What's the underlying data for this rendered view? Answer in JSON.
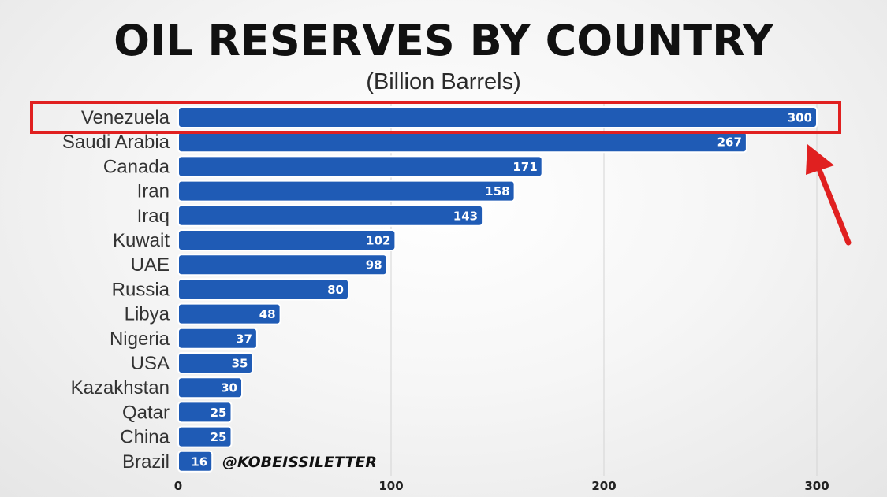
{
  "header": {
    "title": "OIL RESERVES BY COUNTRY",
    "subtitle": "(Billion Barrels)"
  },
  "watermark": "@KOBEISSILETTER",
  "colors": {
    "bar": "#1f5bb5",
    "bar_border": "#ffffff",
    "highlight": "#e02020",
    "grid": "#d4d4d4"
  },
  "highlight": {
    "category": "Venezuela",
    "marker": "red-arrow"
  },
  "chart_data": {
    "type": "bar",
    "orientation": "horizontal",
    "title": "OIL RESERVES BY COUNTRY",
    "subtitle": "(Billion Barrels)",
    "xlabel": "",
    "ylabel": "",
    "categories": [
      "Venezuela",
      "Saudi Arabia",
      "Canada",
      "Iran",
      "Iraq",
      "Kuwait",
      "UAE",
      "Russia",
      "Libya",
      "Nigeria",
      "USA",
      "Kazakhstan",
      "Qatar",
      "China",
      "Brazil"
    ],
    "values": [
      300,
      267,
      171,
      158,
      143,
      102,
      98,
      80,
      48,
      37,
      35,
      30,
      25,
      25,
      16
    ],
    "xlim": [
      0,
      300
    ],
    "xticks": [
      0,
      100,
      200,
      300
    ],
    "grid": true
  }
}
